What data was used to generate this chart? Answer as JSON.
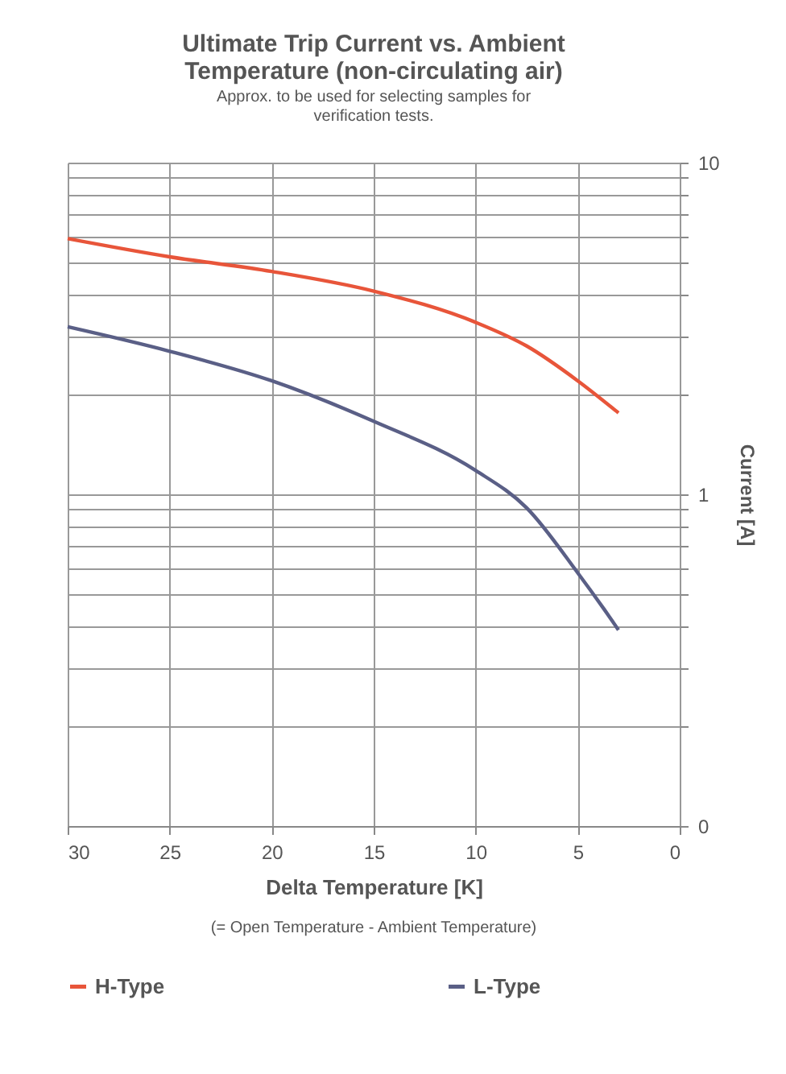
{
  "chart_data": {
    "type": "line",
    "title": "Ultimate Trip Current vs. Ambient Temperature (non-circulating air)",
    "subtitle": "Approx. to be used for selecting samples for verification tests.",
    "xlabel": "Delta Temperature [K]",
    "ylabel": "Current [A]",
    "annotations": [
      "(= Open Temperature - Ambient Temperature)"
    ],
    "xlim": [
      30,
      0
    ],
    "xticks": [
      30,
      25,
      20,
      15,
      10,
      5,
      0
    ],
    "ylim": [
      0.1,
      10
    ],
    "log": "y",
    "grid": true,
    "legend": "bottom",
    "line_style": "solid",
    "marker": "none",
    "yticks": [
      {
        "value": 0.1,
        "label": "0"
      },
      {
        "value": 0.2,
        "label": null
      },
      {
        "value": 0.3,
        "label": null
      },
      {
        "value": 0.4,
        "label": null
      },
      {
        "value": 0.5,
        "label": null
      },
      {
        "value": 0.6,
        "label": null
      },
      {
        "value": 0.7,
        "label": null
      },
      {
        "value": 0.8,
        "label": null
      },
      {
        "value": 0.9,
        "label": null
      },
      1,
      {
        "value": 2,
        "label": null
      },
      {
        "value": 3,
        "label": null
      },
      {
        "value": 4,
        "label": null
      },
      {
        "value": 5,
        "label": null
      },
      {
        "value": 6,
        "label": null
      },
      {
        "value": 7,
        "label": null
      },
      {
        "value": 8,
        "label": null
      },
      {
        "value": 9,
        "label": null
      },
      10
    ],
    "x": [
      30,
      25,
      20,
      15,
      10,
      7.5,
      5,
      3
    ],
    "series": [
      {
        "name": "H-Type",
        "color": "#e8553a",
        "values": [
          5.9,
          5.2,
          4.7,
          4.1,
          3.3,
          2.8,
          2.2,
          1.76
        ]
      },
      {
        "name": "L-Type",
        "color": "#5a5f86",
        "x": [
          30,
          25,
          20,
          15,
          10,
          7.5,
          5,
          3.7,
          3
        ],
        "values": [
          3.2,
          2.7,
          2.2,
          1.66,
          1.18,
          0.91,
          0.58,
          0.45,
          0.39
        ]
      }
    ]
  }
}
